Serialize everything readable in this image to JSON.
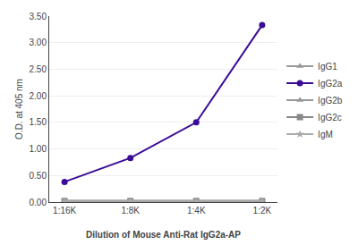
{
  "chart_data": {
    "type": "line",
    "categories": [
      "1:16K",
      "1:8K",
      "1:4K",
      "1:2K"
    ],
    "series": [
      {
        "name": "IgG1",
        "color": "#999999",
        "marker": "triangle",
        "values": [
          0.02,
          0.02,
          0.02,
          0.02
        ]
      },
      {
        "name": "IgG2a",
        "color": "#3b0c96",
        "marker": "circle",
        "values": [
          0.38,
          0.83,
          1.5,
          3.33
        ]
      },
      {
        "name": "IgG2b",
        "color": "#999999",
        "marker": "triangle",
        "values": [
          0.02,
          0.02,
          0.02,
          0.02
        ]
      },
      {
        "name": "IgG2c",
        "color": "#888888",
        "marker": "square",
        "values": [
          0.02,
          0.02,
          0.02,
          0.02
        ]
      },
      {
        "name": "IgM",
        "color": "#aaaaaa",
        "marker": "star",
        "values": [
          0.02,
          0.02,
          0.02,
          0.02
        ]
      }
    ],
    "x_label": "Dilution of Mouse Anti-Rat IgG2a-AP",
    "y_label": "O.D. at 405 nm",
    "ylim": [
      0.0,
      3.5
    ],
    "yticks": [
      {
        "value": 0,
        "label": "0.00"
      },
      {
        "value": 0.5,
        "label": "0.50"
      },
      {
        "value": 1,
        "label": "1.00"
      },
      {
        "value": 1.5,
        "label": "1.50"
      },
      {
        "value": 2,
        "label": "2.00"
      },
      {
        "value": 2.5,
        "label": "2.50"
      },
      {
        "value": 3,
        "label": "3.00"
      },
      {
        "value": 3.5,
        "label": "3.50"
      }
    ],
    "grid": "y",
    "legend": "right"
  }
}
